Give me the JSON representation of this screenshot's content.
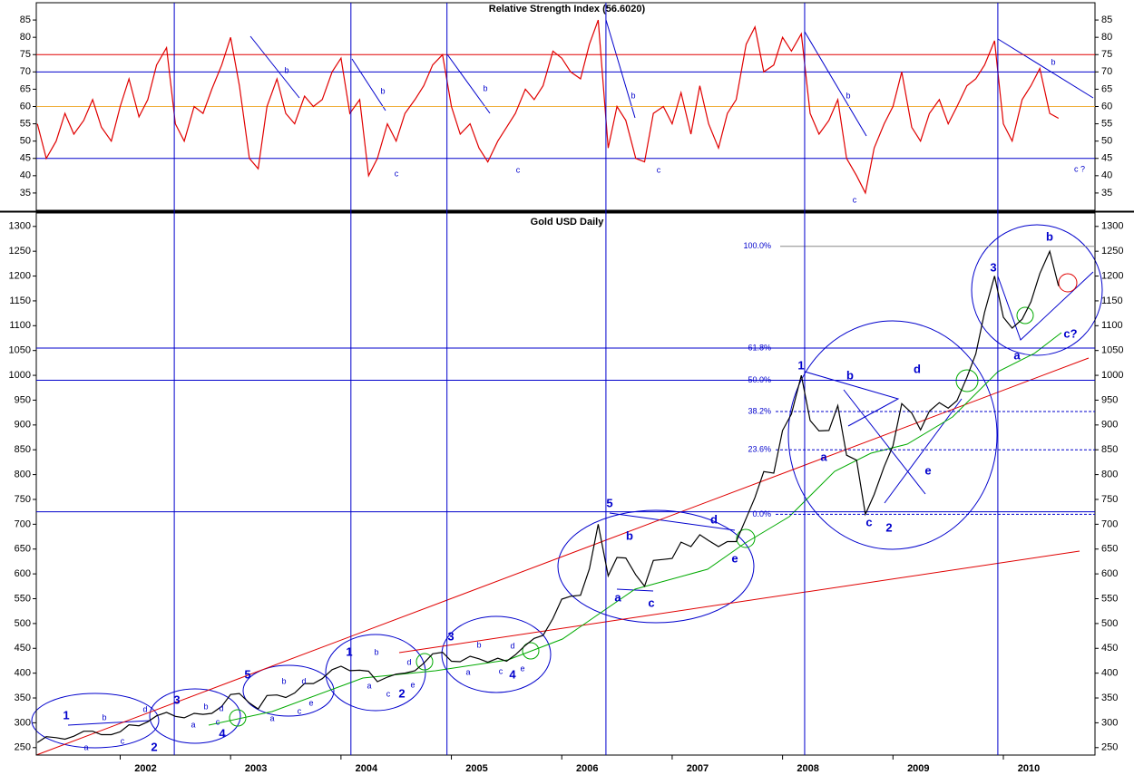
{
  "chart_data": [
    {
      "type": "line",
      "title": "Relative Strength Index (56.6020)",
      "color": "#e00000",
      "x": [
        2001.25,
        2001.33,
        2001.42,
        2001.5,
        2001.58,
        2001.67,
        2001.75,
        2001.83,
        2001.92,
        2002.0,
        2002.08,
        2002.17,
        2002.25,
        2002.33,
        2002.42,
        2002.5,
        2002.58,
        2002.67,
        2002.75,
        2002.83,
        2002.92,
        2003.0,
        2003.08,
        2003.17,
        2003.25,
        2003.33,
        2003.42,
        2003.5,
        2003.58,
        2003.67,
        2003.75,
        2003.83,
        2003.92,
        2004.0,
        2004.08,
        2004.17,
        2004.25,
        2004.33,
        2004.42,
        2004.5,
        2004.58,
        2004.67,
        2004.75,
        2004.83,
        2004.92,
        2005.0,
        2005.08,
        2005.17,
        2005.25,
        2005.33,
        2005.42,
        2005.5,
        2005.58,
        2005.67,
        2005.75,
        2005.83,
        2005.92,
        2006.0,
        2006.08,
        2006.17,
        2006.25,
        2006.33,
        2006.42,
        2006.5,
        2006.58,
        2006.67,
        2006.75,
        2006.83,
        2006.92,
        2007.0,
        2007.08,
        2007.17,
        2007.25,
        2007.33,
        2007.42,
        2007.5,
        2007.58,
        2007.67,
        2007.75,
        2007.83,
        2007.92,
        2008.0,
        2008.08,
        2008.17,
        2008.25,
        2008.33,
        2008.42,
        2008.5,
        2008.58,
        2008.67,
        2008.75,
        2008.83,
        2008.92,
        2009.0,
        2009.08,
        2009.17,
        2009.25,
        2009.33,
        2009.42,
        2009.5,
        2009.58,
        2009.67,
        2009.75,
        2009.83,
        2009.92,
        2010.0,
        2010.08,
        2010.17,
        2010.25,
        2010.33,
        2010.42,
        2010.5
      ],
      "values": [
        55,
        45,
        50,
        58,
        52,
        56,
        62,
        54,
        50,
        60,
        68,
        57,
        62,
        72,
        77,
        55,
        50,
        60,
        58,
        65,
        72,
        80,
        66,
        45,
        42,
        60,
        68,
        58,
        55,
        63,
        60,
        62,
        70,
        74,
        58,
        62,
        40,
        45,
        55,
        50,
        58,
        62,
        66,
        72,
        75,
        60,
        52,
        55,
        48,
        44,
        50,
        54,
        58,
        65,
        62,
        66,
        76,
        74,
        70,
        68,
        78,
        85,
        48,
        60,
        56,
        45,
        44,
        58,
        60,
        55,
        64,
        52,
        66,
        55,
        48,
        58,
        62,
        78,
        83,
        70,
        72,
        80,
        76,
        81,
        58,
        52,
        56,
        62,
        45,
        40,
        35,
        48,
        55,
        60,
        70,
        54,
        50,
        58,
        62,
        55,
        60,
        66,
        68,
        72,
        79,
        55,
        50,
        62,
        66,
        71,
        58,
        56.6
      ],
      "xlim": [
        2001.24,
        2010.83
      ],
      "ylim": [
        30,
        90
      ],
      "yticks": [
        35,
        40,
        45,
        50,
        55,
        60,
        65,
        70,
        75,
        80,
        85
      ],
      "hlines": [
        {
          "value": 75,
          "color": "#e00000"
        },
        {
          "value": 70,
          "color": "#0000cc"
        },
        {
          "value": 60,
          "color": "#f0b040"
        },
        {
          "value": 45,
          "color": "#0000cc"
        }
      ],
      "annotations": [
        "b",
        "b",
        "c",
        "b",
        "c",
        "b",
        "c",
        "b",
        "c",
        "b",
        "c ?"
      ]
    },
    {
      "type": "line",
      "title": "Gold USD Daily",
      "color": "#000000",
      "x": [
        2001.25,
        2001.33,
        2001.42,
        2001.5,
        2001.58,
        2001.67,
        2001.75,
        2001.83,
        2001.92,
        2002.0,
        2002.08,
        2002.17,
        2002.25,
        2002.33,
        2002.42,
        2002.5,
        2002.58,
        2002.67,
        2002.75,
        2002.83,
        2002.92,
        2003.0,
        2003.08,
        2003.17,
        2003.25,
        2003.33,
        2003.42,
        2003.5,
        2003.58,
        2003.67,
        2003.75,
        2003.83,
        2003.92,
        2004.0,
        2004.08,
        2004.17,
        2004.25,
        2004.33,
        2004.42,
        2004.5,
        2004.58,
        2004.67,
        2004.75,
        2004.83,
        2004.92,
        2005.0,
        2005.08,
        2005.17,
        2005.25,
        2005.33,
        2005.42,
        2005.5,
        2005.58,
        2005.67,
        2005.75,
        2005.83,
        2005.92,
        2006.0,
        2006.08,
        2006.17,
        2006.25,
        2006.33,
        2006.42,
        2006.5,
        2006.58,
        2006.67,
        2006.75,
        2006.83,
        2006.92,
        2007.0,
        2007.08,
        2007.17,
        2007.25,
        2007.33,
        2007.42,
        2007.5,
        2007.58,
        2007.67,
        2007.75,
        2007.83,
        2007.92,
        2008.0,
        2008.08,
        2008.17,
        2008.25,
        2008.33,
        2008.42,
        2008.5,
        2008.58,
        2008.67,
        2008.75,
        2008.83,
        2008.92,
        2009.0,
        2009.08,
        2009.17,
        2009.25,
        2009.33,
        2009.42,
        2009.5,
        2009.58,
        2009.67,
        2009.75,
        2009.83,
        2009.92,
        2010.0,
        2010.08,
        2010.17,
        2010.25,
        2010.33,
        2010.42,
        2010.5
      ],
      "values": [
        260,
        272,
        270,
        267,
        273,
        283,
        283,
        276,
        276,
        282,
        296,
        294,
        302,
        314,
        321,
        313,
        310,
        319,
        317,
        319,
        333,
        357,
        359,
        340,
        328,
        355,
        356,
        351,
        360,
        379,
        379,
        389,
        407,
        414,
        405,
        406,
        404,
        383,
        392,
        398,
        400,
        405,
        420,
        439,
        442,
        424,
        423,
        434,
        429,
        422,
        430,
        424,
        437,
        456,
        470,
        476,
        510,
        549,
        555,
        557,
        610,
        700,
        596,
        633,
        632,
        598,
        575,
        627,
        629,
        631,
        664,
        655,
        679,
        667,
        655,
        665,
        665,
        712,
        754,
        806,
        803,
        889,
        922,
        1000,
        909,
        888,
        889,
        939,
        839,
        829,
        720,
        760,
        816,
        858,
        943,
        924,
        890,
        928,
        945,
        934,
        949,
        996,
        1043,
        1127,
        1200,
        1117,
        1095,
        1113,
        1148,
        1205,
        1250,
        1180
      ],
      "xlim": [
        2001.24,
        2010.83
      ],
      "ylim": [
        235,
        1327
      ],
      "yticks": [
        250,
        300,
        350,
        400,
        450,
        500,
        550,
        600,
        650,
        700,
        750,
        800,
        850,
        900,
        950,
        1000,
        1050,
        1100,
        1150,
        1200,
        1250,
        1300
      ],
      "xticks": [
        2002,
        2003,
        2004,
        2005,
        2006,
        2007,
        2008,
        2009,
        2010
      ],
      "vlines": [
        2002.49,
        2004.09,
        2004.96,
        2006.4,
        2008.2,
        2009.95
      ],
      "hlines": [
        1055,
        990,
        725
      ],
      "hline_color": "#0000cc",
      "fib_levels": [
        {
          "value": 1260,
          "label": "100.0%"
        },
        {
          "value": 1055,
          "label": "61.8%"
        },
        {
          "value": 990,
          "label": "50.0%"
        },
        {
          "value": 927,
          "label": "38.2%"
        },
        {
          "value": 850,
          "label": "23.6%"
        },
        {
          "value": 720,
          "label": "0.0%"
        }
      ],
      "annotations": [
        "1",
        "b",
        "d",
        "c",
        "a",
        "2",
        "3",
        "b",
        "d",
        "a",
        "c",
        "4",
        "5",
        "b",
        "d",
        "a",
        "c",
        "e",
        "1",
        "b",
        "d",
        "a",
        "c",
        "e",
        "2",
        "3",
        "b",
        "d",
        "a",
        "c",
        "e",
        "4",
        "5",
        "b",
        "d",
        "a",
        "c",
        "e",
        "1",
        "b",
        "d",
        "a",
        "c",
        "2",
        "e",
        "3",
        "b",
        "a",
        "c?"
      ]
    }
  ]
}
